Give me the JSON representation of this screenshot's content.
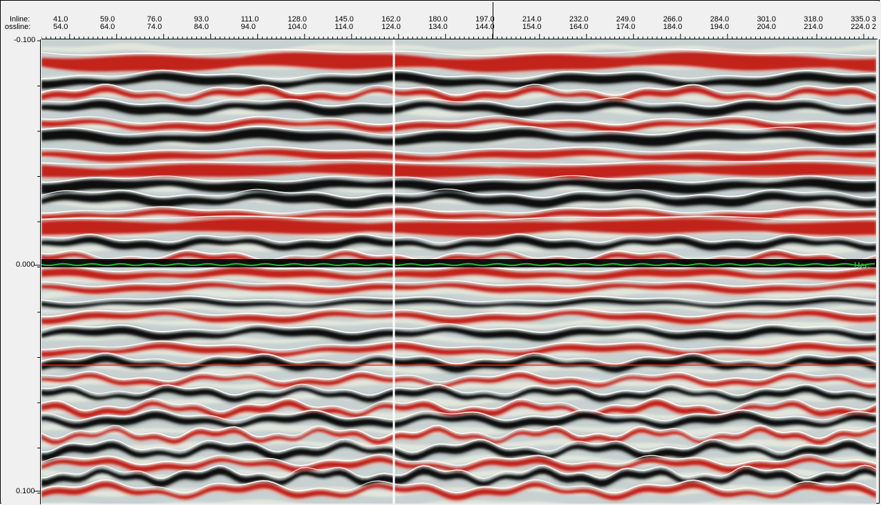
{
  "header": {
    "inline_label": "Inline:",
    "crossline_label": "ossline:",
    "inline_values": [
      "41.0",
      "59.0",
      "76.0",
      "93.0",
      "111.0",
      "128.0",
      "145.0",
      "162.0",
      "180.0",
      "197.0",
      "214.0",
      "232.0",
      "249.0",
      "266.0",
      "284.0",
      "301.0",
      "318.0",
      "335.0 3"
    ],
    "crossline_values": [
      "54.0",
      "64.0",
      "74.0",
      "84.0",
      "94.0",
      "104.0",
      "114.0",
      "124.0",
      "134.0",
      "144.0",
      "154.0",
      "164.0",
      "174.0",
      "184.0",
      "194.0",
      "204.0",
      "214.0",
      "224.0 2"
    ]
  },
  "time_axis": {
    "labels": [
      "-0.100",
      "0.000",
      "0.100"
    ]
  },
  "horizon": {
    "name": "Hec",
    "color": "#22bb33"
  },
  "cursor": {
    "horizontal_color": "#ff2200",
    "vertical_color": "#ffffff"
  },
  "colors": {
    "positive": "#c0150c",
    "negative": "#050505",
    "neutral": "#e6e9e6"
  }
}
